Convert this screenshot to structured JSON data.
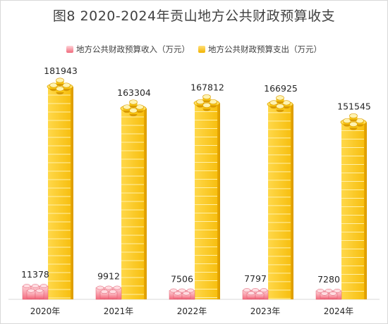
{
  "title": "图8   2020-2024年贡山地方公共财政预算收支",
  "legend": {
    "revenue": "地方公共财政预算收入（万元）",
    "expenditure": "地方公共财政预算支出（万元）"
  },
  "colors": {
    "revenue": "#f0707f",
    "expenditure": "#f5b800"
  },
  "chart_data": {
    "type": "bar",
    "title": "图8   2020-2024年贡山地方公共财政预算收支",
    "categories": [
      "2020年",
      "2021年",
      "2022年",
      "2023年",
      "2024年"
    ],
    "series": [
      {
        "name": "地方公共财政预算收入（万元）",
        "values": [
          11378,
          9912,
          7506,
          7797,
          7280
        ]
      },
      {
        "name": "地方公共财政预算支出（万元）",
        "values": [
          181943,
          163304,
          167812,
          166925,
          151545
        ]
      }
    ],
    "ylim": [
      0,
      200000
    ],
    "grid": false,
    "legend_position": "top"
  }
}
